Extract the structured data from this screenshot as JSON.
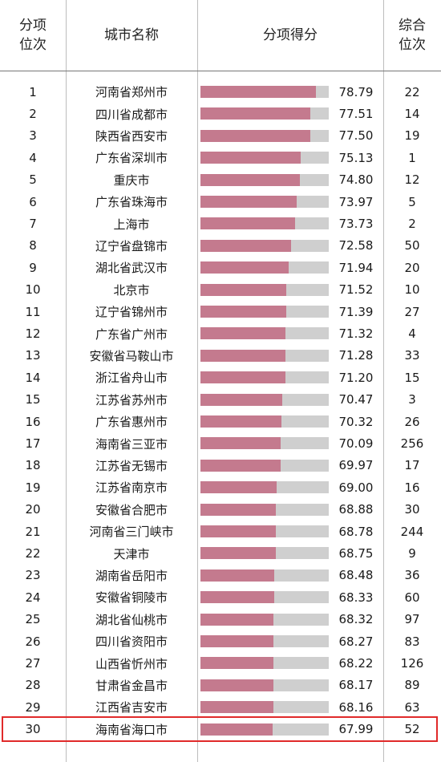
{
  "header": {
    "rank_line1": "分项",
    "rank_line2": "位次",
    "city": "城市名称",
    "score": "分项得分",
    "overall_line1": "综合",
    "overall_line2": "位次"
  },
  "accent_colors": {
    "bar_fill": "#c47a8e",
    "bar_track": "#cfcfcf",
    "highlight_border": "#e02a2a"
  },
  "chart_data": {
    "type": "table",
    "bar_scale_max": 100,
    "highlighted_rank": 30,
    "columns": [
      "分项位次",
      "城市名称",
      "分项得分",
      "综合位次"
    ],
    "rows": [
      {
        "rank": "1",
        "city": "河南省郑州市",
        "score": 78.79,
        "score_text": "78.79",
        "overall": "22"
      },
      {
        "rank": "2",
        "city": "四川省成都市",
        "score": 77.51,
        "score_text": "77.51",
        "overall": "14"
      },
      {
        "rank": "3",
        "city": "陕西省西安市",
        "score": 77.5,
        "score_text": "77.50",
        "overall": "19"
      },
      {
        "rank": "4",
        "city": "广东省深圳市",
        "score": 75.13,
        "score_text": "75.13",
        "overall": "1"
      },
      {
        "rank": "5",
        "city": "重庆市",
        "score": 74.8,
        "score_text": "74.80",
        "overall": "12"
      },
      {
        "rank": "6",
        "city": "广东省珠海市",
        "score": 73.97,
        "score_text": "73.97",
        "overall": "5"
      },
      {
        "rank": "7",
        "city": "上海市",
        "score": 73.73,
        "score_text": "73.73",
        "overall": "2"
      },
      {
        "rank": "8",
        "city": "辽宁省盘锦市",
        "score": 72.58,
        "score_text": "72.58",
        "overall": "50"
      },
      {
        "rank": "9",
        "city": "湖北省武汉市",
        "score": 71.94,
        "score_text": "71.94",
        "overall": "20"
      },
      {
        "rank": "10",
        "city": "北京市",
        "score": 71.52,
        "score_text": "71.52",
        "overall": "10"
      },
      {
        "rank": "11",
        "city": "辽宁省锦州市",
        "score": 71.39,
        "score_text": "71.39",
        "overall": "27"
      },
      {
        "rank": "12",
        "city": "广东省广州市",
        "score": 71.32,
        "score_text": "71.32",
        "overall": "4"
      },
      {
        "rank": "13",
        "city": "安徽省马鞍山市",
        "score": 71.28,
        "score_text": "71.28",
        "overall": "33"
      },
      {
        "rank": "14",
        "city": "浙江省舟山市",
        "score": 71.2,
        "score_text": "71.20",
        "overall": "15"
      },
      {
        "rank": "15",
        "city": "江苏省苏州市",
        "score": 70.47,
        "score_text": "70.47",
        "overall": "3"
      },
      {
        "rank": "16",
        "city": "广东省惠州市",
        "score": 70.32,
        "score_text": "70.32",
        "overall": "26"
      },
      {
        "rank": "17",
        "city": "海南省三亚市",
        "score": 70.09,
        "score_text": "70.09",
        "overall": "256"
      },
      {
        "rank": "18",
        "city": "江苏省无锡市",
        "score": 69.97,
        "score_text": "69.97",
        "overall": "17"
      },
      {
        "rank": "19",
        "city": "江苏省南京市",
        "score": 69.0,
        "score_text": "69.00",
        "overall": "16"
      },
      {
        "rank": "20",
        "city": "安徽省合肥市",
        "score": 68.88,
        "score_text": "68.88",
        "overall": "30"
      },
      {
        "rank": "21",
        "city": "河南省三门峡市",
        "score": 68.78,
        "score_text": "68.78",
        "overall": "244"
      },
      {
        "rank": "22",
        "city": "天津市",
        "score": 68.75,
        "score_text": "68.75",
        "overall": "9"
      },
      {
        "rank": "23",
        "city": "湖南省岳阳市",
        "score": 68.48,
        "score_text": "68.48",
        "overall": "36"
      },
      {
        "rank": "24",
        "city": "安徽省铜陵市",
        "score": 68.33,
        "score_text": "68.33",
        "overall": "60"
      },
      {
        "rank": "25",
        "city": "湖北省仙桃市",
        "score": 68.32,
        "score_text": "68.32",
        "overall": "97"
      },
      {
        "rank": "26",
        "city": "四川省资阳市",
        "score": 68.27,
        "score_text": "68.27",
        "overall": "83"
      },
      {
        "rank": "27",
        "city": "山西省忻州市",
        "score": 68.22,
        "score_text": "68.22",
        "overall": "126"
      },
      {
        "rank": "28",
        "city": "甘肃省金昌市",
        "score": 68.17,
        "score_text": "68.17",
        "overall": "89"
      },
      {
        "rank": "29",
        "city": "江西省吉安市",
        "score": 68.16,
        "score_text": "68.16",
        "overall": "63"
      },
      {
        "rank": "30",
        "city": "海南省海口市",
        "score": 67.99,
        "score_text": "67.99",
        "overall": "52"
      }
    ]
  }
}
